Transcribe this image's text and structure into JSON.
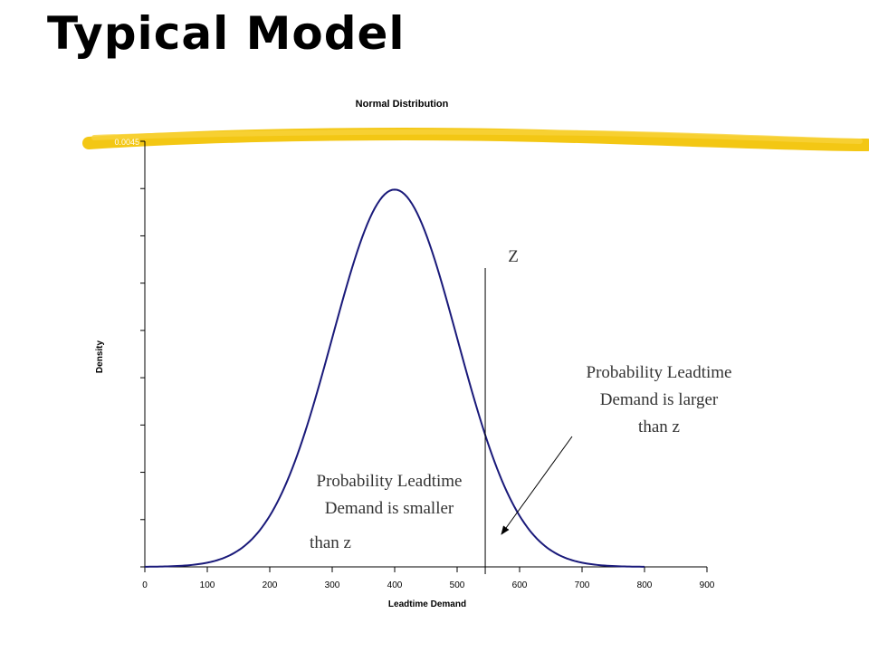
{
  "slide": {
    "title": "Typical Model"
  },
  "annotations": {
    "z_label": "Z",
    "larger_line1": "Probability Leadtime",
    "larger_line2": "Demand is larger",
    "larger_line3": "than z",
    "smaller_line1": "Probability Leadtime",
    "smaller_line2": "Demand is smaller",
    "smaller_line3": "than z"
  },
  "colors": {
    "curve": "#1a1a7a",
    "highlighter": "#f2c200",
    "axis": "#000000"
  },
  "chart_data": {
    "type": "line",
    "title": "Normal Distribution",
    "xlabel": "Leadtime Demand",
    "ylabel": "Density",
    "x_ticks": [
      0,
      100,
      200,
      300,
      400,
      500,
      600,
      700,
      800,
      900
    ],
    "xlim": [
      0,
      900
    ],
    "ylim": [
      0,
      0.0045
    ],
    "y_top_tick_label": "0.0045",
    "y_tick_count": 9,
    "distribution": {
      "mean": 400,
      "sd": 100
    },
    "x_range": [
      0,
      800
    ],
    "z_value": 545,
    "grid": false,
    "legend": "none"
  }
}
